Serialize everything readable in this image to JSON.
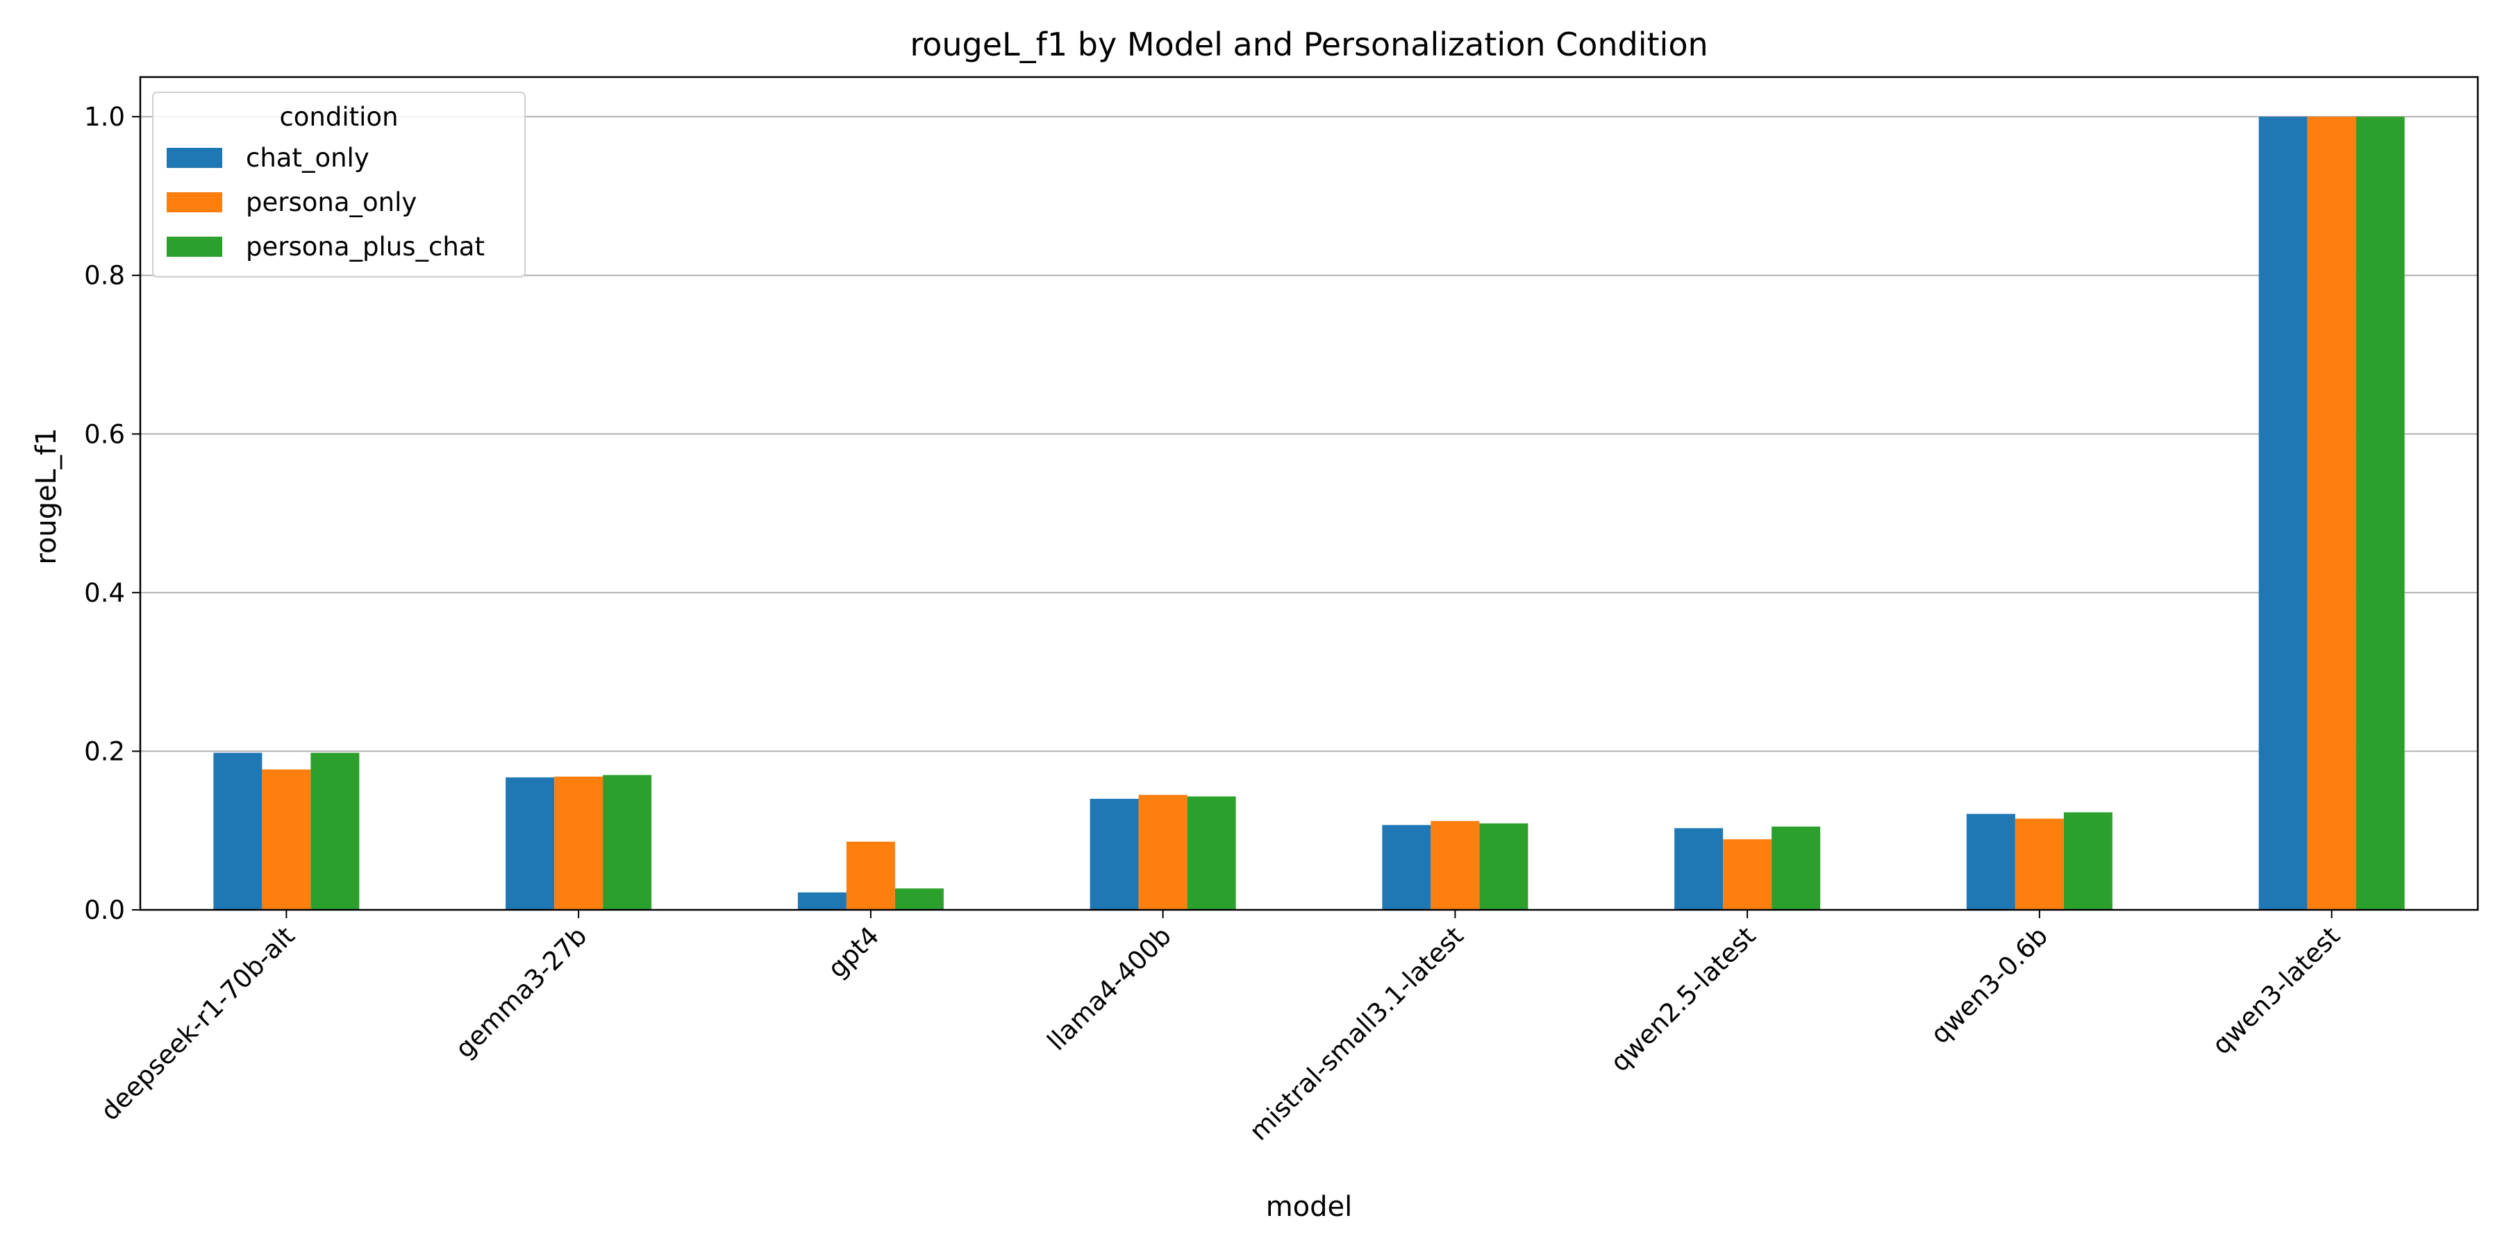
{
  "chart_data": {
    "type": "bar",
    "title": "rougeL_f1 by Model and Personalization Condition",
    "xlabel": "model",
    "ylabel": "rougeL_f1",
    "ylim": [
      0,
      1.05
    ],
    "yticks": [
      0.0,
      0.2,
      0.4,
      0.6,
      0.8,
      1.0
    ],
    "ytick_labels": [
      "0.0",
      "0.2",
      "0.4",
      "0.6",
      "0.8",
      "1.0"
    ],
    "grid": "y",
    "legend": {
      "title": "condition",
      "placement": "top-left"
    },
    "categories": [
      "deepseek-r1-70b-alt",
      "gemma3-27b",
      "gpt4",
      "llama4-400b",
      "mistral-small3.1-latest",
      "qwen2.5-latest",
      "qwen3-0.6b",
      "qwen3-latest"
    ],
    "series": [
      {
        "name": "chat_only",
        "color": "#1f77b4",
        "values": [
          0.198,
          0.167,
          0.022,
          0.14,
          0.107,
          0.103,
          0.121,
          1.0
        ]
      },
      {
        "name": "persona_only",
        "color": "#ff7f0e",
        "values": [
          0.177,
          0.168,
          0.086,
          0.145,
          0.112,
          0.089,
          0.115,
          1.0
        ]
      },
      {
        "name": "persona_plus_chat",
        "color": "#2ca02c",
        "values": [
          0.198,
          0.17,
          0.027,
          0.143,
          0.109,
          0.105,
          0.123,
          1.0
        ]
      }
    ]
  }
}
